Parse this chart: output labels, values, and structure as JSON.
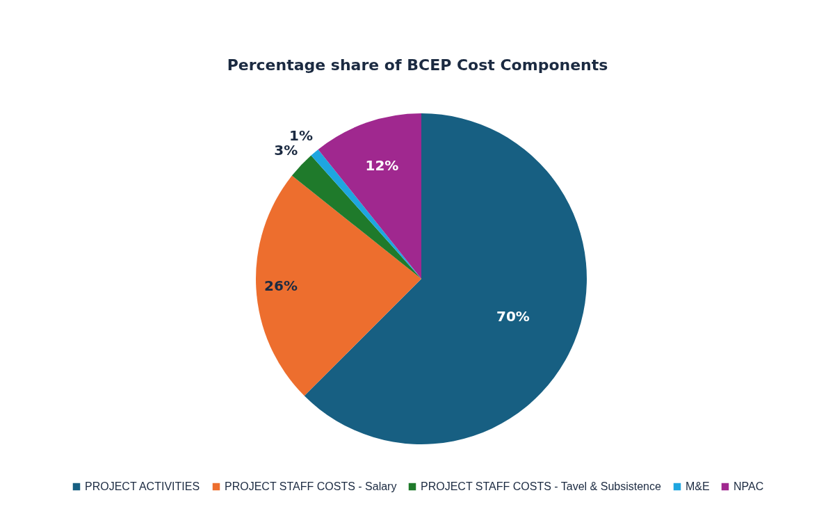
{
  "chart_data": {
    "type": "pie",
    "title": "Percentage share of BCEP Cost Components",
    "categories": [
      "PROJECT ACTIVITIES",
      "PROJECT STAFF COSTS - Salary",
      "PROJECT STAFF COSTS - Tavel & Subsistence",
      "M&E",
      "NPAC"
    ],
    "values": [
      70,
      26,
      3,
      1,
      12
    ],
    "colors": [
      "#175f82",
      "#ed6e2e",
      "#1f7a2b",
      "#1ea6e0",
      "#a0288f"
    ],
    "value_labels": [
      "70%",
      "26%",
      "3%",
      "1%",
      "12%"
    ],
    "legend": "bottom"
  }
}
